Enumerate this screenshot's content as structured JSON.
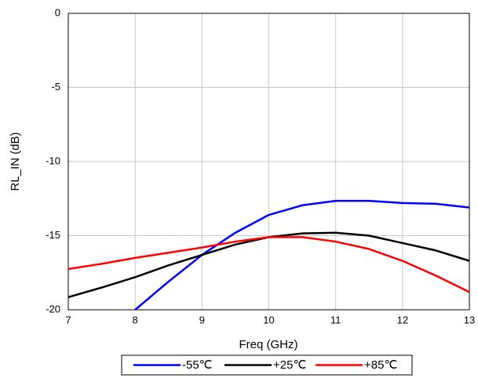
{
  "chart_data": {
    "type": "line",
    "xlabel": "Freq (GHz)",
    "ylabel": "RL_IN (dB)",
    "x": [
      7,
      7.5,
      8,
      8.5,
      9,
      9.5,
      10,
      10.5,
      11,
      11.5,
      12,
      12.5,
      13
    ],
    "series": [
      {
        "name": "-55℃",
        "color": "#0000ff",
        "values": [
          null,
          null,
          -20,
          -18.1,
          -16.3,
          -14.8,
          -13.6,
          -12.95,
          -12.65,
          -12.65,
          -12.8,
          -12.85,
          -13.1
        ]
      },
      {
        "name": "+25℃",
        "color": "#000000",
        "values": [
          -19.15,
          -18.5,
          -17.8,
          -17.0,
          -16.3,
          -15.6,
          -15.1,
          -14.85,
          -14.8,
          -15.0,
          -15.5,
          -16.0,
          -16.7
        ]
      },
      {
        "name": "+85℃",
        "color": "#ff0000",
        "values": [
          -17.25,
          -16.9,
          -16.5,
          -16.15,
          -15.8,
          -15.4,
          -15.1,
          -15.1,
          -15.4,
          -15.9,
          -16.7,
          -17.7,
          -18.8
        ]
      }
    ],
    "xlim": [
      7,
      13
    ],
    "xticks": [
      7,
      8,
      9,
      10,
      11,
      12,
      13
    ],
    "ylim": [
      -20,
      0
    ],
    "yticks": [
      -20,
      -15,
      -10,
      -5,
      0
    ],
    "grid": true,
    "legend": "bottom"
  }
}
